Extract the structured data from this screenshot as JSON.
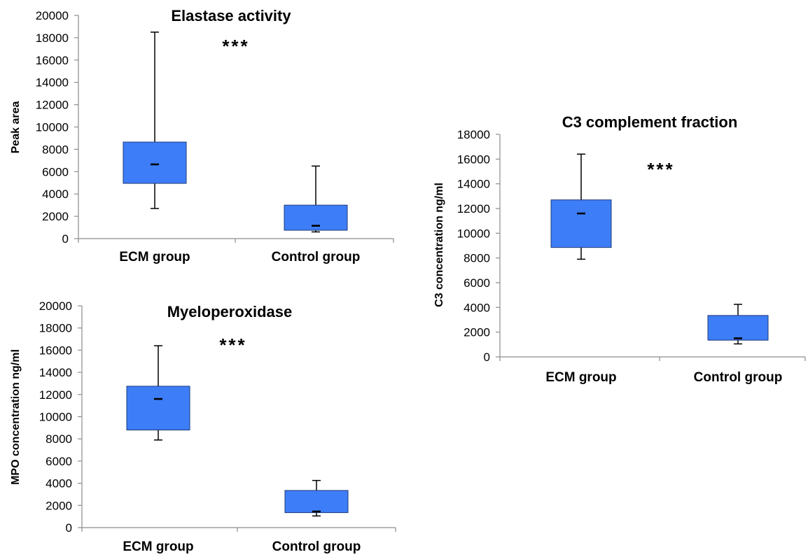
{
  "chart_data": [
    {
      "id": "elastase",
      "type": "box",
      "title": "Elastase activity",
      "ylabel": "Peak area",
      "xlabel": "",
      "ylim": [
        0,
        20000
      ],
      "yticks": [
        0,
        2000,
        4000,
        6000,
        8000,
        10000,
        12000,
        14000,
        16000,
        18000,
        20000
      ],
      "ytick_labels": [
        "0",
        "2000",
        "4000",
        "6000",
        "8000",
        "10000",
        "12000",
        "14000",
        "16000",
        "18000",
        "20000"
      ],
      "categories": [
        "ECM group",
        "Control group"
      ],
      "boxes": [
        {
          "category": "ECM group",
          "min": 2700,
          "q1": 4950,
          "median": 6650,
          "q3": 8650,
          "max": 18500
        },
        {
          "category": "Control group",
          "min": 600,
          "q1": 750,
          "median": 1150,
          "q3": 3000,
          "max": 6500
        }
      ],
      "annotation": "***",
      "annotation_position": "top-center",
      "grid": false,
      "legend": "none",
      "box_color": "#3d7df7"
    },
    {
      "id": "myeloperoxidase",
      "type": "box",
      "title": "Myeloperoxidase",
      "ylabel": "MPO concentration ng/ml",
      "xlabel": "",
      "ylim": [
        0,
        20000
      ],
      "yticks": [
        0,
        2000,
        4000,
        6000,
        8000,
        10000,
        12000,
        14000,
        16000,
        18000,
        20000
      ],
      "ytick_labels": [
        "0",
        "2000",
        "4000",
        "6000",
        "8000",
        "10000",
        "12000",
        "14000",
        "16000",
        "18000",
        "20000"
      ],
      "categories": [
        "ECM group",
        "Control group"
      ],
      "boxes": [
        {
          "category": "ECM group",
          "min": 7900,
          "q1": 8800,
          "median": 11600,
          "q3": 12750,
          "max": 16400
        },
        {
          "category": "Control group",
          "min": 1050,
          "q1": 1350,
          "median": 1450,
          "q3": 3350,
          "max": 4250
        }
      ],
      "annotation": "***",
      "annotation_position": "top-center",
      "grid": false,
      "legend": "none",
      "box_color": "#3d7df7"
    },
    {
      "id": "c3",
      "type": "box",
      "title": "C3 complement fraction",
      "ylabel": "C3 concentration ng/ml",
      "xlabel": "",
      "ylim": [
        0,
        18000
      ],
      "yticks": [
        0,
        2000,
        4000,
        6000,
        8000,
        10000,
        12000,
        14000,
        16000,
        18000
      ],
      "ytick_labels": [
        "0",
        "2000",
        "4000",
        "6000",
        "8000",
        "10000",
        "12000",
        "14000",
        "16000",
        "18000"
      ],
      "categories": [
        "ECM group",
        "Control group"
      ],
      "boxes": [
        {
          "category": "ECM group",
          "min": 7900,
          "q1": 8850,
          "median": 11600,
          "q3": 12700,
          "max": 16400
        },
        {
          "category": "Control group",
          "min": 1050,
          "q1": 1350,
          "median": 1500,
          "q3": 3350,
          "max": 4250
        }
      ],
      "annotation": "***",
      "annotation_position": "top-center",
      "grid": false,
      "legend": "none",
      "box_color": "#3d7df7"
    }
  ]
}
